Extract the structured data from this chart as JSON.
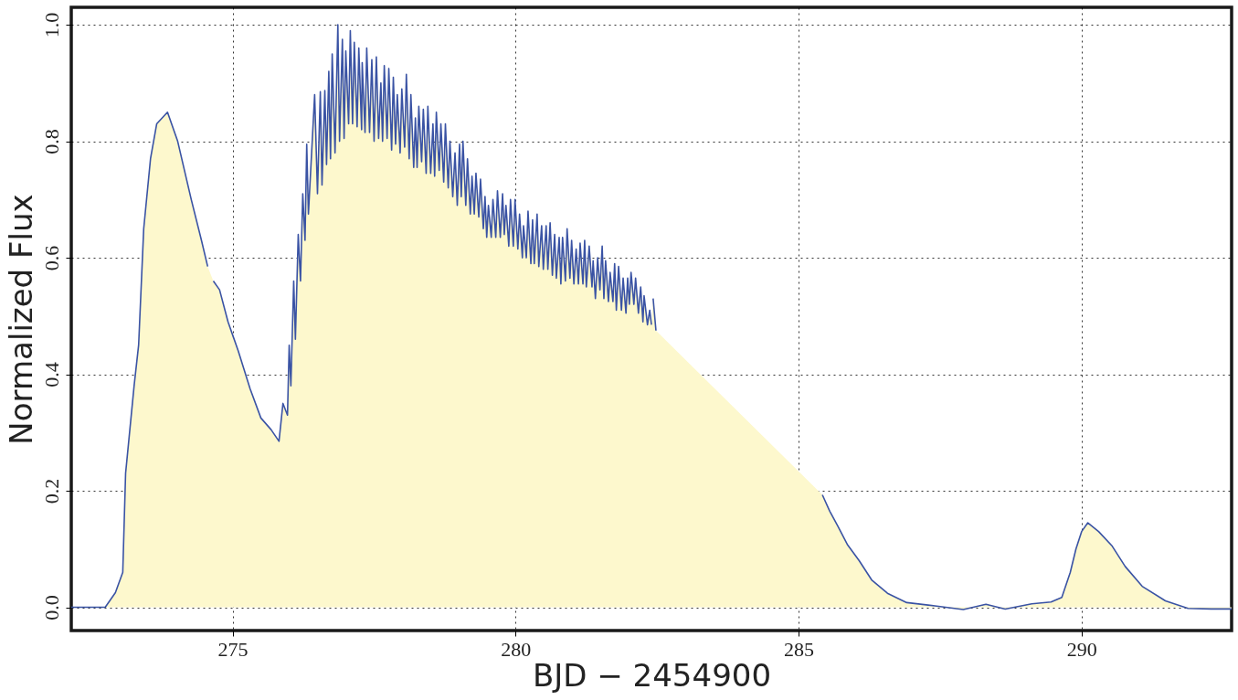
{
  "chart_data": {
    "type": "line",
    "xlabel": "BJD − 2454900",
    "ylabel": "Normalized Flux",
    "xlim": [
      272.15,
      292.65
    ],
    "ylim": [
      -0.04,
      1.03
    ],
    "xticks": [
      275,
      280,
      285,
      290
    ],
    "yticks": [
      {
        "value": 0,
        "label": "0.0"
      },
      0.2,
      0.4,
      0.6,
      0.8,
      {
        "value": 1,
        "label": "1.0"
      }
    ],
    "grid": true,
    "x": [
      272.15,
      272.5,
      272.75,
      272.93,
      273.06,
      273.11,
      273.26,
      273.34,
      273.43,
      273.55,
      273.66,
      273.85,
      274.03,
      274.27,
      274.45,
      274.56,
      274.61,
      274.66,
      274.77,
      274.92,
      275.1,
      275.31,
      275.5,
      275.68,
      275.82,
      275.89,
      275.97,
      276.0,
      276.03,
      276.08,
      276.11,
      276.16,
      276.2,
      276.24,
      276.28,
      276.31,
      276.34,
      276.45,
      276.5,
      276.55,
      276.58,
      276.63,
      276.66,
      276.7,
      276.73,
      276.76,
      276.81,
      276.86,
      276.89,
      276.94,
      276.97,
      277.0,
      277.05,
      277.08,
      277.12,
      277.15,
      277.2,
      277.23,
      277.28,
      277.29,
      277.34,
      277.37,
      277.42,
      277.46,
      277.5,
      277.54,
      277.58,
      277.62,
      277.65,
      277.68,
      277.73,
      277.76,
      277.81,
      277.84,
      277.88,
      277.91,
      277.96,
      277.99,
      278.04,
      278.07,
      278.12,
      278.15,
      278.2,
      278.23,
      278.26,
      278.29,
      278.34,
      278.37,
      278.42,
      278.45,
      278.5,
      278.54,
      278.57,
      278.6,
      278.65,
      278.68,
      278.73,
      278.76,
      278.81,
      278.84,
      278.89,
      278.93,
      278.97,
      279.01,
      279.04,
      279.07,
      279.12,
      279.15,
      279.2,
      279.23,
      279.27,
      279.3,
      279.35,
      279.38,
      279.43,
      279.46,
      279.49,
      279.52,
      279.57,
      279.6,
      279.65,
      279.68,
      279.73,
      279.77,
      279.8,
      279.83,
      279.88,
      279.91,
      279.96,
      279.99,
      280.04,
      280.07,
      280.12,
      280.14,
      280.19,
      280.22,
      280.27,
      280.3,
      280.33,
      280.38,
      280.41,
      280.46,
      280.49,
      280.54,
      280.57,
      280.61,
      280.65,
      280.69,
      280.72,
      280.77,
      280.8,
      280.83,
      280.88,
      280.91,
      280.96,
      280.99,
      281.03,
      281.07,
      281.11,
      281.14,
      281.19,
      281.22,
      281.25,
      281.3,
      281.35,
      281.37,
      281.41,
      281.45,
      281.49,
      281.53,
      281.56,
      281.59,
      281.64,
      281.67,
      281.72,
      281.75,
      281.78,
      281.82,
      281.87,
      281.9,
      281.95,
      281.98,
      282.01,
      282.04,
      282.09,
      282.12,
      282.17,
      282.21,
      282.25,
      282.27,
      282.33,
      282.37,
      282.4,
      282.415,
      282.43,
      282.48,
      284.0,
      285.42,
      285.55,
      285.69,
      285.86,
      286.07,
      286.29,
      286.57,
      286.91,
      287.44,
      287.91,
      288.31,
      288.65,
      289.12,
      289.46,
      289.65,
      289.8,
      289.9,
      290.0,
      290.11,
      290.3,
      290.54,
      290.77,
      291.07,
      291.48,
      291.88,
      292.29,
      292.65
    ],
    "series": [
      {
        "type": "area",
        "color": "#fdf8cd",
        "values": [
          0.0,
          0.0,
          0.0,
          0.025,
          0.06,
          0.23,
          0.38,
          0.45,
          0.65,
          0.77,
          0.83,
          0.85,
          0.8,
          0.7,
          0.63,
          0.585,
          null,
          0.56,
          0.545,
          0.49,
          0.44,
          0.375,
          0.325,
          0.305,
          0.285,
          0.35,
          0.33,
          0.45,
          0.38,
          0.56,
          0.46,
          0.64,
          0.56,
          0.71,
          0.63,
          0.795,
          0.675,
          0.88,
          0.71,
          0.885,
          0.725,
          0.887,
          0.76,
          0.92,
          0.77,
          0.95,
          0.78,
          1.0,
          0.8,
          0.975,
          0.805,
          0.955,
          0.83,
          0.99,
          0.83,
          0.97,
          0.825,
          0.96,
          0.82,
          0.935,
          0.815,
          0.96,
          0.815,
          0.94,
          0.8,
          0.945,
          0.805,
          0.9,
          0.8,
          0.93,
          0.805,
          0.925,
          0.785,
          0.91,
          0.795,
          0.88,
          0.78,
          0.89,
          0.79,
          0.915,
          0.77,
          0.88,
          0.755,
          0.84,
          0.755,
          0.86,
          0.765,
          0.855,
          0.745,
          0.86,
          0.745,
          0.83,
          0.74,
          0.85,
          0.75,
          0.83,
          0.73,
          0.83,
          0.72,
          0.8,
          0.705,
          0.78,
          0.69,
          0.795,
          0.705,
          0.8,
          0.69,
          0.77,
          0.675,
          0.74,
          0.675,
          0.745,
          0.67,
          0.735,
          0.65,
          0.705,
          0.635,
          0.69,
          0.635,
          0.7,
          0.635,
          0.715,
          0.635,
          0.71,
          0.64,
          0.69,
          0.62,
          0.7,
          0.62,
          0.7,
          0.615,
          0.675,
          0.6,
          0.655,
          0.6,
          0.68,
          0.59,
          0.665,
          0.59,
          0.675,
          0.585,
          0.655,
          0.58,
          0.655,
          0.58,
          0.66,
          0.57,
          0.64,
          0.565,
          0.635,
          0.555,
          0.635,
          0.56,
          0.65,
          0.565,
          0.63,
          0.555,
          0.615,
          0.555,
          0.625,
          0.555,
          0.63,
          0.55,
          0.62,
          0.55,
          0.595,
          0.53,
          0.6,
          0.545,
          0.62,
          0.53,
          0.595,
          0.525,
          0.575,
          0.525,
          0.59,
          0.51,
          0.585,
          0.51,
          0.565,
          0.505,
          0.565,
          0.52,
          0.575,
          0.52,
          0.565,
          0.505,
          0.55,
          0.49,
          0.535,
          0.485,
          0.51,
          0.485,
          null,
          0.53,
          0.475,
          null,
          0.193,
          0.165,
          0.14,
          0.108,
          0.08,
          0.047,
          0.024,
          0.008,
          0.002,
          -0.004,
          0.005,
          -0.003,
          0.006,
          0.009,
          0.017,
          0.06,
          0.1,
          0.13,
          0.145,
          0.13,
          0.105,
          0.07,
          0.036,
          0.011,
          -0.002,
          -0.003,
          -0.003
        ]
      },
      {
        "color": "#3a53a4",
        "values": [
          0.0,
          0.0,
          0.0,
          0.025,
          0.06,
          0.23,
          0.38,
          0.45,
          0.65,
          0.77,
          0.83,
          0.85,
          0.8,
          0.7,
          0.63,
          0.585,
          null,
          0.56,
          0.545,
          0.49,
          0.44,
          0.375,
          0.325,
          0.305,
          0.285,
          0.35,
          0.33,
          0.45,
          0.38,
          0.56,
          0.46,
          0.64,
          0.56,
          0.71,
          0.63,
          0.795,
          0.675,
          0.88,
          0.71,
          0.885,
          0.725,
          0.887,
          0.76,
          0.92,
          0.77,
          0.95,
          0.78,
          1.0,
          0.8,
          0.975,
          0.805,
          0.955,
          0.83,
          0.99,
          0.83,
          0.97,
          0.825,
          0.96,
          0.82,
          0.935,
          0.815,
          0.96,
          0.815,
          0.94,
          0.8,
          0.945,
          0.805,
          0.9,
          0.8,
          0.93,
          0.805,
          0.925,
          0.785,
          0.91,
          0.795,
          0.88,
          0.78,
          0.89,
          0.79,
          0.915,
          0.77,
          0.88,
          0.755,
          0.84,
          0.755,
          0.86,
          0.765,
          0.855,
          0.745,
          0.86,
          0.745,
          0.83,
          0.74,
          0.85,
          0.75,
          0.83,
          0.73,
          0.83,
          0.72,
          0.8,
          0.705,
          0.78,
          0.69,
          0.795,
          0.705,
          0.8,
          0.69,
          0.77,
          0.675,
          0.74,
          0.675,
          0.745,
          0.67,
          0.735,
          0.65,
          0.705,
          0.635,
          0.69,
          0.635,
          0.7,
          0.635,
          0.715,
          0.635,
          0.71,
          0.64,
          0.69,
          0.62,
          0.7,
          0.62,
          0.7,
          0.615,
          0.675,
          0.6,
          0.655,
          0.6,
          0.68,
          0.59,
          0.665,
          0.59,
          0.675,
          0.585,
          0.655,
          0.58,
          0.655,
          0.58,
          0.66,
          0.57,
          0.64,
          0.565,
          0.635,
          0.555,
          0.635,
          0.56,
          0.65,
          0.565,
          0.63,
          0.555,
          0.615,
          0.555,
          0.625,
          0.555,
          0.63,
          0.55,
          0.62,
          0.55,
          0.595,
          0.53,
          0.6,
          0.545,
          0.62,
          0.53,
          0.595,
          0.525,
          0.575,
          0.525,
          0.59,
          0.51,
          0.585,
          0.51,
          0.565,
          0.505,
          0.565,
          0.52,
          0.575,
          0.52,
          0.565,
          0.505,
          0.55,
          0.49,
          0.535,
          0.485,
          0.51,
          0.485,
          null,
          0.53,
          0.475,
          null,
          0.193,
          0.165,
          0.14,
          0.108,
          0.08,
          0.047,
          0.024,
          0.008,
          0.002,
          -0.004,
          0.005,
          -0.003,
          0.006,
          0.009,
          0.017,
          0.06,
          0.1,
          0.13,
          0.145,
          0.13,
          0.105,
          0.07,
          0.036,
          0.011,
          -0.002,
          -0.003,
          -0.003
        ]
      }
    ]
  }
}
